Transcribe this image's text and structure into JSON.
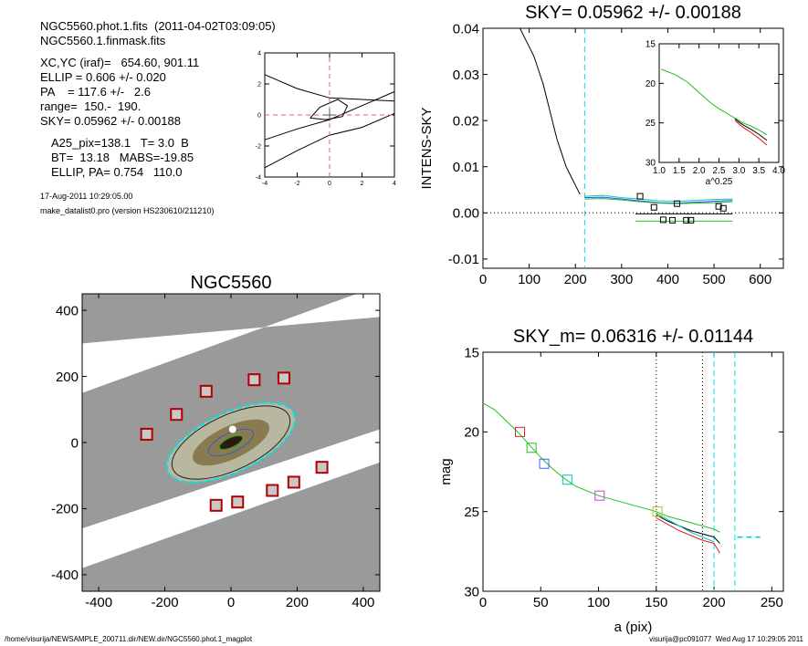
{
  "header": {
    "lines": [
      "NGC5560.phot.1.fits  (2011-04-02T03:09:05)",
      "NGC5560.1.finmask.fits",
      "XC,YC (iraf)=   654.60, 901.11",
      "ELLIP = 0.606 +/- 0.020",
      "PA    = 117.6 +/-   2.6",
      "range=  150.-  190.",
      "SKY= 0.05962 +/- 0.00188",
      "A25_pix=138.1   T= 3.0  B",
      "BT=  13.18   MABS=-19.85",
      "ELLIP, PA= 0.754   110.0"
    ],
    "date": "17-Aug-2011 10:29:05.00",
    "program": "make_datalist0.pro (version HS230610/211210)"
  },
  "footer": {
    "path": "/home/visurija/NEWSAMPLE_200711.dir/NEW.dir/NGC5560.phot.1_magplot",
    "user": "visurija@pc091077  Wed Aug 17 10:29:05 2011"
  },
  "colors": {
    "dashed": "#00e0e0",
    "red_dash": "#e06060",
    "marker_red": "#b00000"
  },
  "chart_data": [
    {
      "id": "contour",
      "type": "contour",
      "xlim": [
        -4,
        4
      ],
      "ylim": [
        -4,
        4
      ],
      "xticks": [
        -4,
        -2,
        0,
        2,
        4
      ],
      "yticks": [
        -4,
        -2,
        0,
        2,
        4
      ],
      "center": [
        0,
        0
      ]
    },
    {
      "id": "sky",
      "type": "line",
      "title": "SKY= 0.05962 +/- 0.00188",
      "ylabel": "INTENS-SKY",
      "xlim": [
        0,
        650
      ],
      "ylim": [
        -0.012,
        0.04
      ],
      "xticks": [
        0,
        100,
        200,
        300,
        400,
        500,
        600
      ],
      "yticks": [
        -0.01,
        0.0,
        0.01,
        0.02,
        0.03,
        0.04
      ],
      "ytick_labels": [
        "-0.01",
        "0.00",
        "0.01",
        "0.02",
        "0.03",
        "0.04"
      ],
      "vline": 220,
      "series": [
        {
          "color": "#000000",
          "x": [
            80,
            95,
            110,
            120,
            130,
            140,
            150,
            160,
            170,
            180,
            190,
            200,
            210
          ],
          "y": [
            0.04,
            0.037,
            0.034,
            0.031,
            0.028,
            0.024,
            0.02,
            0.016,
            0.013,
            0.01,
            0.008,
            0.006,
            0.004
          ]
        },
        {
          "color": "#00c8c8",
          "x": [
            220,
            260,
            300,
            340,
            380,
            420,
            460,
            500,
            540
          ],
          "y": [
            0.0036,
            0.0038,
            0.0033,
            0.003,
            0.0026,
            0.0025,
            0.0027,
            0.0029,
            0.003
          ]
        },
        {
          "color": "#4040ff",
          "x": [
            220,
            260,
            300,
            340,
            380,
            420,
            460,
            500,
            540
          ],
          "y": [
            0.0033,
            0.0034,
            0.003,
            0.0026,
            0.0022,
            0.0021,
            0.0023,
            0.0025,
            0.0027
          ]
        },
        {
          "color": "#20c020",
          "x": [
            220,
            260,
            300,
            340,
            380,
            420,
            460,
            500,
            540
          ],
          "y": [
            0.003,
            0.0031,
            0.0028,
            0.0024,
            0.0021,
            0.002,
            0.0021,
            0.0022,
            0.0024
          ]
        },
        {
          "color": "#20c020",
          "x": [
            330,
            540
          ],
          "y": [
            -0.0018,
            -0.0018
          ]
        },
        {
          "color": "#000000",
          "x": [
            330,
            540
          ],
          "y": [
            -0.0002,
            -0.0002
          ]
        }
      ],
      "squares": {
        "x": [
          340,
          420,
          370,
          390,
          410,
          440,
          450,
          510,
          520
        ],
        "y": [
          0.0036,
          0.002,
          0.0012,
          -0.0015,
          -0.0016,
          -0.0016,
          -0.0016,
          0.0014,
          0.001
        ]
      },
      "inset": {
        "xlim": [
          1.0,
          4.0
        ],
        "ylim": [
          30,
          15
        ],
        "xticks": [
          1.0,
          1.5,
          2.0,
          2.5,
          3.0,
          3.5,
          4.0
        ],
        "xtick_labels": [
          "1.0",
          "1.5",
          "2.0",
          "2.5",
          "3.0",
          "3.5",
          "4.0"
        ],
        "yticks": [
          15,
          20,
          25,
          30
        ],
        "xlabel": "a^0.25",
        "x": [
          1.05,
          1.4,
          1.7,
          1.9,
          2.1,
          2.3,
          2.5,
          2.7,
          2.9,
          3.1,
          3.3,
          3.5,
          3.7
        ],
        "y": [
          18.2,
          18.9,
          19.8,
          20.7,
          21.6,
          22.5,
          23.2,
          23.8,
          24.4,
          25.0,
          25.4,
          25.9,
          26.5
        ]
      }
    },
    {
      "id": "image",
      "type": "image",
      "title": "NGC5560",
      "xlim": [
        -450,
        450
      ],
      "ylim": [
        -450,
        450
      ],
      "xticks": [
        -400,
        -200,
        0,
        200,
        400
      ],
      "yticks": [
        -400,
        -200,
        0,
        200,
        400
      ],
      "ellipse": {
        "a": 210,
        "b": 90,
        "angle": 25
      },
      "markers": {
        "x": [
          -255,
          -165,
          -75,
          70,
          160,
          -45,
          20,
          125,
          190,
          275
        ],
        "y": [
          25,
          85,
          155,
          190,
          195,
          -190,
          -180,
          -145,
          -120,
          -75
        ]
      }
    },
    {
      "id": "mag",
      "type": "line",
      "title": "SKY_m=  0.06316 +/- 0.01144",
      "xlabel": "a (pix)",
      "ylabel": "mag",
      "xlim": [
        0,
        260
      ],
      "ylim": [
        30,
        15
      ],
      "xticks": [
        0,
        50,
        100,
        150,
        200,
        250
      ],
      "yticks": [
        15,
        20,
        25,
        30
      ],
      "vlines_dotted": [
        150,
        190
      ],
      "vlines_dashed": [
        200,
        218
      ],
      "series": [
        {
          "name": "",
          "color": "#20c020",
          "x": [
            0,
            10,
            20,
            30,
            40,
            50,
            60,
            70,
            80,
            90,
            100,
            110,
            120,
            130,
            140,
            150,
            160,
            170,
            180,
            190,
            200,
            205
          ],
          "y": [
            18.2,
            18.6,
            19.3,
            20.0,
            20.8,
            21.6,
            22.3,
            22.9,
            23.4,
            23.7,
            24.0,
            24.2,
            24.4,
            24.6,
            24.8,
            25.0,
            25.3,
            25.5,
            25.7,
            25.9,
            26.1,
            26.3
          ]
        },
        {
          "name": "",
          "color": "#000000",
          "x": [
            150,
            160,
            170,
            180,
            190,
            200,
            205
          ],
          "y": [
            25.2,
            25.6,
            25.9,
            26.2,
            26.4,
            26.6,
            27.0
          ]
        },
        {
          "name": "",
          "color": "#e02020",
          "x": [
            150,
            160,
            170,
            180,
            190,
            200,
            205
          ],
          "y": [
            25.4,
            25.8,
            26.2,
            26.5,
            26.8,
            27.0,
            27.6
          ]
        },
        {
          "name": "",
          "color": "#00c8c8",
          "x": [
            150,
            160,
            170,
            180,
            190,
            200
          ],
          "y": [
            25.1,
            25.5,
            25.9,
            26.3,
            26.6,
            26.9
          ]
        },
        {
          "name": "",
          "color": "#00c8c8",
          "dashed": true,
          "x": [
            220,
            240
          ],
          "y": [
            26.6,
            26.6
          ]
        }
      ],
      "squares": [
        {
          "x": 32,
          "y": 20.0,
          "color": "#e02020"
        },
        {
          "x": 42,
          "y": 21.0,
          "color": "#20c020"
        },
        {
          "x": 53,
          "y": 22.0,
          "color": "#4060ff"
        },
        {
          "x": 73,
          "y": 23.0,
          "color": "#00c8c8"
        },
        {
          "x": 101,
          "y": 24.0,
          "color": "#d040d0"
        },
        {
          "x": 151,
          "y": 25.0,
          "color": "#c0c000"
        }
      ]
    }
  ]
}
